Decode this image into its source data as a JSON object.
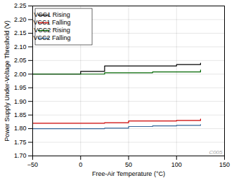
{
  "chart_data": {
    "type": "line",
    "xlabel": "Free-Air Temperature (°C)",
    "ylabel": "Power Supply Under-Voltage Threshold (V)",
    "x": [
      -50,
      -10,
      0,
      25,
      50,
      75,
      100,
      125
    ],
    "xlim": [
      -50,
      150
    ],
    "xticks": [
      -50,
      0,
      50,
      100,
      150
    ],
    "ylim": [
      1.7,
      2.25
    ],
    "yticks": [
      {
        "value": 1.7,
        "label": "1.70"
      },
      1.75,
      {
        "value": 1.8,
        "label": "1.80"
      },
      1.85,
      {
        "value": 1.9,
        "label": "1.90"
      },
      1.95,
      {
        "value": 2.0,
        "label": "2.00"
      },
      2.05,
      {
        "value": 2.1,
        "label": "2.10"
      },
      2.15,
      {
        "value": 2.2,
        "label": "2.20"
      },
      2.25
    ],
    "grid": true,
    "legend": "upper left",
    "line_style": "step",
    "annotations": [
      "C005"
    ],
    "series": [
      {
        "name": "VCC1 Rising",
        "color": "#000000",
        "values": [
          2.0,
          2.0,
          2.01,
          2.03,
          2.03,
          2.03,
          2.035,
          2.04
        ]
      },
      {
        "name": "VCC1 Falling",
        "color": "#cc0000",
        "values": [
          1.82,
          1.82,
          1.82,
          1.822,
          1.828,
          1.828,
          1.83,
          1.835
        ]
      },
      {
        "name": "VCC2 Rising",
        "color": "#006600",
        "values": [
          2.0,
          2.0,
          2.0,
          2.005,
          2.005,
          2.008,
          2.008,
          2.015
        ]
      },
      {
        "name": "VCC2 Falling",
        "color": "#336699",
        "values": [
          1.8,
          1.8,
          1.8,
          1.802,
          1.808,
          1.81,
          1.812,
          1.815
        ]
      }
    ]
  }
}
